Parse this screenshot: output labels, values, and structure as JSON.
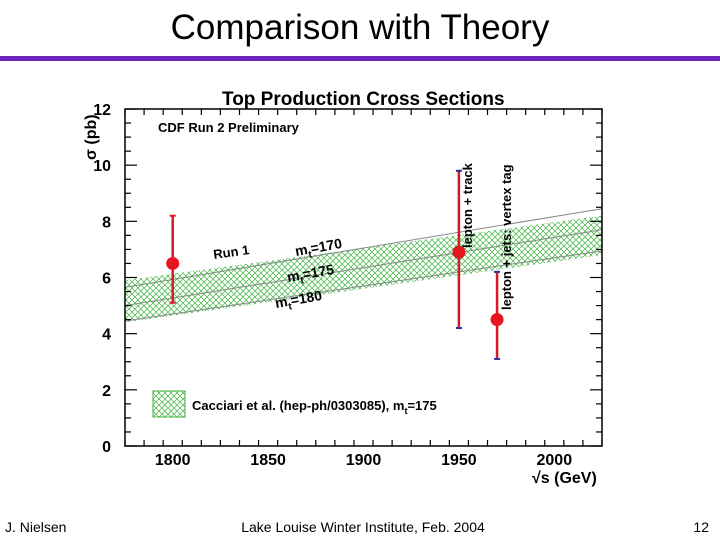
{
  "slide": {
    "title": "Comparison with Theory",
    "footer_left": "J. Nielsen",
    "footer_center": "Lake Louise Winter Institute, Feb. 2004",
    "footer_right": "12"
  },
  "colors": {
    "accent": "#6b24b5",
    "points": "#e8141e",
    "band": "#3cb43c",
    "upper_error": "#d41a24",
    "lower_error": "#2a2aa8"
  },
  "chart_data": {
    "type": "scatter",
    "title": "Top Production Cross Sections",
    "subtitle": "CDF Run 2 Preliminary",
    "xlabel": "√s (GeV)",
    "ylabel": "σ (pb)",
    "xlim": [
      1775,
      2025
    ],
    "ylim": [
      0,
      12
    ],
    "x_ticks": [
      1800,
      1850,
      1900,
      1950,
      2000
    ],
    "y_ticks": [
      0,
      2,
      4,
      6,
      8,
      10,
      12
    ],
    "points": [
      {
        "x": 1800,
        "y": 6.5,
        "err_up": 1.7,
        "err_down": 1.4,
        "label": "Run 1"
      },
      {
        "x": 1950,
        "y": 6.9,
        "err_up": 2.9,
        "err_down": 2.7,
        "label": "lepton + track"
      },
      {
        "x": 1970,
        "y": 4.5,
        "err_up": 1.7,
        "err_down": 1.4,
        "label": "lepton + jets: vertex tag"
      }
    ],
    "theory": {
      "legend": "Cacciari et al. (hep-ph/0303085), m",
      "legend_sub": "t",
      "legend_tail": "=175",
      "curves": [
        {
          "mass_prefix": "m",
          "mass_sub": "t",
          "mass_suffix": "=170",
          "x": [
            1775,
            2025
          ],
          "y": [
            5.65,
            8.45
          ]
        },
        {
          "mass_prefix": "m",
          "mass_sub": "t",
          "mass_suffix": "=175",
          "x": [
            1775,
            2025
          ],
          "y": [
            5.0,
            7.7
          ]
        },
        {
          "mass_prefix": "m",
          "mass_sub": "t",
          "mass_suffix": "=180",
          "x": [
            1775,
            2025
          ],
          "y": [
            4.45,
            6.95
          ]
        }
      ],
      "band": {
        "x": [
          1775,
          2025
        ],
        "y_low": [
          4.4,
          6.8
        ],
        "y_high": [
          5.9,
          8.2
        ]
      }
    }
  }
}
